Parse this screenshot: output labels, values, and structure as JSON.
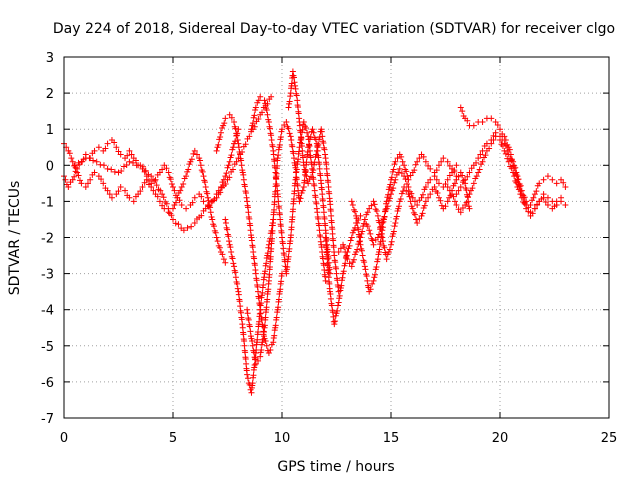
{
  "chart_data": {
    "type": "scatter",
    "title": "Day 224 of 2018, Sidereal Day-to-day VTEC variation (SDTVAR) for receiver clgo",
    "xlabel": "GPS time / hours",
    "ylabel": "SDTVAR / TECUs",
    "xlim": [
      0,
      25
    ],
    "ylim": [
      -7,
      3
    ],
    "x_ticks": [
      0,
      5,
      10,
      15,
      20,
      25
    ],
    "y_ticks": [
      -7,
      -6,
      -5,
      -4,
      -3,
      -2,
      -1,
      0,
      1,
      2,
      3
    ],
    "grid": true,
    "marker": "+",
    "color": "#ff0000",
    "series": [
      {
        "name": "s1",
        "x": [
          0.0,
          0.2,
          0.4,
          0.6,
          0.8,
          1.0,
          1.2,
          1.4,
          1.6,
          1.8,
          2.0,
          2.2,
          2.4,
          2.6,
          2.8,
          3.0,
          3.2,
          3.4,
          3.6,
          3.8,
          4.0,
          4.2,
          4.4,
          4.6,
          4.8,
          5.0,
          5.2,
          5.4,
          5.6,
          5.8,
          6.0,
          6.2,
          6.4,
          6.6,
          6.8,
          7.0,
          7.2,
          7.4,
          7.6,
          7.8,
          8.0
        ],
        "y": [
          -0.3,
          -0.6,
          -0.4,
          -0.1,
          0.1,
          0.3,
          0.2,
          0.4,
          0.5,
          0.4,
          0.6,
          0.7,
          0.5,
          0.3,
          0.2,
          0.4,
          0.2,
          0.0,
          -0.1,
          -0.3,
          -0.5,
          -0.4,
          -0.2,
          0.0,
          -0.2,
          -0.6,
          -0.9,
          -1.1,
          -1.2,
          -1.1,
          -0.9,
          -0.8,
          -1.0,
          -1.1,
          -1.0,
          -0.8,
          -0.6,
          -0.3,
          0.1,
          0.6,
          1.0
        ]
      },
      {
        "name": "s2",
        "x": [
          0.0,
          0.2,
          0.4,
          0.6,
          0.8,
          1.0,
          1.2,
          1.4,
          1.6,
          1.8,
          2.0,
          2.2,
          2.4,
          2.6,
          2.8,
          3.0,
          3.2,
          3.4,
          3.6,
          3.8,
          4.0,
          4.2,
          4.4,
          4.6,
          4.8,
          5.0,
          5.2,
          5.4,
          5.6,
          5.8,
          6.0,
          6.2,
          6.4,
          6.6,
          6.8,
          7.0,
          7.2,
          7.4
        ],
        "y": [
          0.6,
          0.4,
          0.1,
          -0.2,
          -0.5,
          -0.6,
          -0.4,
          -0.2,
          -0.3,
          -0.5,
          -0.7,
          -0.9,
          -0.8,
          -0.6,
          -0.7,
          -0.9,
          -1.0,
          -0.8,
          -0.6,
          -0.4,
          -0.6,
          -0.8,
          -1.0,
          -1.2,
          -1.3,
          -1.2,
          -0.9,
          -0.6,
          -0.3,
          0.1,
          0.4,
          0.2,
          -0.3,
          -0.9,
          -1.5,
          -2.0,
          -2.4,
          -2.7
        ]
      },
      {
        "name": "s3",
        "x": [
          0.5,
          1.0,
          1.5,
          2.0,
          2.5,
          3.0,
          3.5,
          4.0,
          4.5,
          5.0,
          5.5,
          6.0,
          6.5,
          7.0,
          7.5,
          8.0,
          8.5,
          9.0,
          9.5
        ],
        "y": [
          0.0,
          0.2,
          0.1,
          -0.1,
          -0.2,
          0.1,
          0.0,
          -0.3,
          -0.8,
          -1.5,
          -1.8,
          -1.6,
          -1.2,
          -0.9,
          -0.4,
          0.2,
          0.8,
          1.4,
          1.9
        ]
      },
      {
        "name": "s4",
        "x": [
          7.0,
          7.2,
          7.4,
          7.6,
          7.8,
          8.0,
          8.2,
          8.4,
          8.6,
          8.8,
          9.0,
          9.2,
          9.4,
          9.6,
          9.8,
          10.0
        ],
        "y": [
          0.4,
          0.9,
          1.3,
          1.4,
          1.2,
          0.6,
          -0.2,
          -1.0,
          -2.0,
          -3.0,
          -4.0,
          -4.8,
          -5.2,
          -4.9,
          -4.0,
          -3.0
        ]
      },
      {
        "name": "s5",
        "x": [
          7.4,
          7.6,
          7.8,
          8.0,
          8.2,
          8.4,
          8.6,
          8.8,
          9.0,
          9.2,
          9.4,
          9.6
        ],
        "y": [
          -1.5,
          -2.2,
          -2.8,
          -3.5,
          -4.5,
          -5.8,
          -6.3,
          -5.2,
          -4.0,
          -3.0,
          -2.2,
          -1.5
        ]
      },
      {
        "name": "s6",
        "x": [
          8.4,
          8.6,
          8.8,
          9.0,
          9.2,
          9.4,
          9.6,
          9.8,
          10.0,
          10.2,
          10.4,
          10.6,
          10.8,
          11.0,
          11.2,
          11.4,
          11.6,
          11.8,
          12.0,
          12.2
        ],
        "y": [
          -4.0,
          -4.8,
          -5.5,
          -5.3,
          -4.5,
          -3.2,
          -1.5,
          0.2,
          1.0,
          1.2,
          0.8,
          0.0,
          -1.0,
          -0.6,
          0.5,
          1.0,
          0.6,
          -0.5,
          -1.8,
          -3.0
        ]
      },
      {
        "name": "s7",
        "x": [
          8.6,
          8.8,
          9.0,
          9.2,
          9.4,
          9.6,
          9.8,
          10.0,
          10.2,
          10.4,
          10.6,
          10.8,
          11.0,
          11.2,
          11.4,
          11.6,
          11.8,
          12.0
        ],
        "y": [
          1.0,
          1.6,
          1.9,
          1.8,
          1.2,
          0.4,
          -0.8,
          -2.0,
          -3.0,
          -2.0,
          -0.5,
          0.5,
          1.2,
          0.8,
          -0.2,
          -1.2,
          -2.2,
          -3.2
        ]
      },
      {
        "name": "s8",
        "x": [
          10.3,
          10.4,
          10.5,
          10.6,
          10.7,
          10.8,
          10.9,
          11.0,
          11.2,
          11.4,
          11.6,
          11.8,
          12.0,
          12.2,
          12.4,
          12.6
        ],
        "y": [
          1.6,
          2.0,
          2.6,
          2.2,
          1.8,
          1.2,
          0.6,
          0.0,
          -0.5,
          -0.2,
          0.4,
          1.0,
          0.2,
          -1.0,
          -2.5,
          -3.5
        ]
      },
      {
        "name": "s9",
        "x": [
          12.0,
          12.2,
          12.4,
          12.6,
          12.8,
          13.0,
          13.2,
          13.4,
          13.6,
          13.8,
          14.0,
          14.2,
          14.4,
          14.6,
          14.8,
          15.0,
          15.2,
          15.4,
          15.6,
          15.8,
          16.0,
          16.2,
          16.4,
          16.6,
          16.8,
          17.0,
          17.2,
          17.4,
          17.6,
          17.8,
          18.0
        ],
        "y": [
          -2.0,
          -3.5,
          -4.4,
          -3.8,
          -3.0,
          -2.4,
          -2.0,
          -1.6,
          -1.4,
          -1.5,
          -1.8,
          -2.2,
          -2.0,
          -1.6,
          -1.2,
          -0.8,
          -0.4,
          -0.1,
          -0.3,
          -0.6,
          -0.9,
          -1.1,
          -0.9,
          -0.6,
          -0.4,
          -0.3,
          -0.5,
          -0.6,
          -0.4,
          -0.2,
          0.0
        ]
      },
      {
        "name": "s10",
        "x": [
          12.6,
          12.8,
          13.0,
          13.2,
          13.4,
          13.6,
          13.8,
          14.0,
          14.2,
          14.4,
          14.6,
          14.8,
          15.0,
          15.2,
          15.4,
          15.6,
          15.8,
          16.0,
          16.2,
          16.4,
          16.6,
          16.8,
          17.0,
          17.2,
          17.4,
          17.6,
          17.8,
          18.0,
          18.2,
          18.4,
          18.6
        ],
        "y": [
          -2.4,
          -2.2,
          -2.6,
          -2.8,
          -2.4,
          -2.0,
          -1.5,
          -1.2,
          -1.0,
          -1.4,
          -2.0,
          -2.6,
          -2.2,
          -1.6,
          -1.0,
          -0.6,
          -0.8,
          -1.2,
          -1.6,
          -1.4,
          -1.0,
          -0.8,
          -0.6,
          -0.9,
          -1.2,
          -1.0,
          -0.7,
          -0.4,
          -0.2,
          -0.5,
          -1.2
        ]
      },
      {
        "name": "s11",
        "x": [
          13.2,
          13.4,
          13.6,
          13.8,
          14.0,
          14.2,
          14.4,
          14.6,
          14.8,
          15.0,
          15.2,
          15.4,
          15.6,
          15.8,
          16.0,
          16.2,
          16.4,
          16.6,
          16.8,
          17.0,
          17.2,
          17.4,
          17.6,
          17.8,
          18.0
        ],
        "y": [
          -1.0,
          -1.4,
          -2.2,
          -2.8,
          -3.5,
          -3.2,
          -2.6,
          -1.8,
          -1.0,
          -0.4,
          0.1,
          0.3,
          0.0,
          -0.4,
          -0.2,
          0.1,
          0.3,
          0.1,
          -0.1,
          -0.2,
          0.0,
          0.2,
          0.1,
          -0.1,
          -0.3
        ]
      },
      {
        "name": "s12",
        "x": [
          18.0,
          18.2,
          18.4,
          18.6,
          18.8,
          19.0,
          19.2,
          19.4,
          19.6,
          19.8,
          20.0,
          20.2,
          20.4,
          20.6,
          20.8,
          21.0,
          21.2,
          21.4,
          21.6,
          21.8,
          22.0,
          22.2,
          22.4,
          22.6,
          22.8,
          23.0
        ],
        "y": [
          -0.8,
          -0.6,
          -0.4,
          -0.2,
          0.0,
          0.2,
          0.4,
          0.6,
          0.7,
          0.9,
          0.8,
          0.6,
          0.3,
          0.0,
          -0.4,
          -0.8,
          -1.1,
          -1.3,
          -1.2,
          -1.0,
          -0.8,
          -0.9,
          -1.0,
          -1.1,
          -1.0,
          -1.1
        ]
      },
      {
        "name": "s13",
        "x": [
          18.2,
          18.4,
          18.6,
          18.8,
          19.0,
          19.2,
          19.4,
          19.6,
          19.8,
          20.0,
          20.2,
          20.4,
          20.6,
          20.8,
          21.0,
          21.2,
          21.4,
          21.6,
          21.8,
          22.0,
          22.2,
          22.4,
          22.6,
          22.8,
          23.0
        ],
        "y": [
          1.6,
          1.3,
          1.1,
          1.1,
          1.2,
          1.2,
          1.3,
          1.3,
          1.2,
          1.0,
          0.8,
          0.5,
          0.1,
          -0.3,
          -0.7,
          -1.0,
          -1.1,
          -0.8,
          -0.5,
          -0.4,
          -0.3,
          -0.4,
          -0.5,
          -0.4,
          -0.6
        ]
      },
      {
        "name": "s14",
        "x": [
          17.6,
          17.8,
          18.0,
          18.2,
          18.4,
          18.6,
          18.8,
          19.0,
          19.2,
          19.4,
          19.6,
          19.8,
          20.0,
          20.2,
          20.4,
          20.6,
          20.8,
          21.0,
          21.2,
          21.4,
          21.6,
          21.8,
          22.0,
          22.2,
          22.4,
          22.6,
          22.8
        ],
        "y": [
          -0.6,
          -0.8,
          -1.1,
          -1.3,
          -1.1,
          -0.8,
          -0.5,
          -0.2,
          0.1,
          0.4,
          0.6,
          0.8,
          0.7,
          0.4,
          0.1,
          -0.2,
          -0.6,
          -0.9,
          -1.2,
          -1.4,
          -1.2,
          -1.0,
          -0.9,
          -1.1,
          -1.2,
          -1.0,
          -0.9
        ]
      }
    ]
  }
}
